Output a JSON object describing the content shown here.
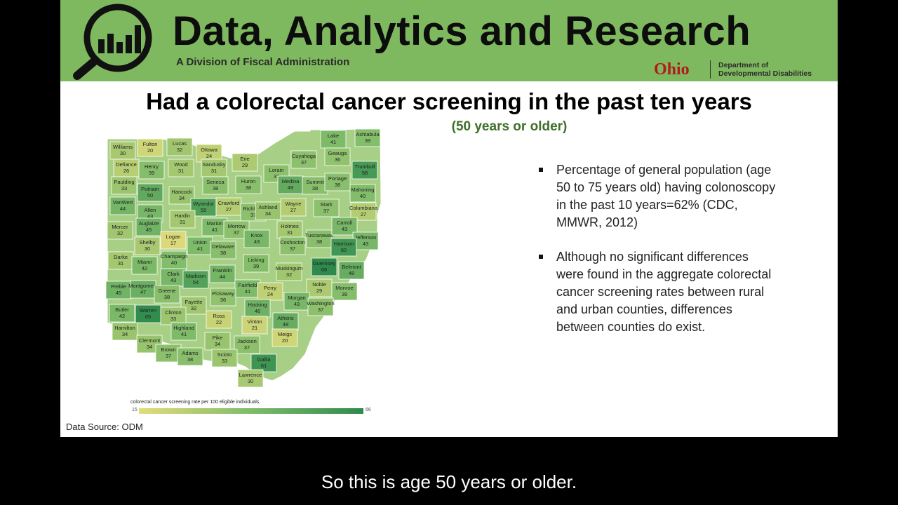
{
  "header": {
    "brand_title": "Data, Analytics and Research",
    "brand_subtitle": "A Division of Fiscal Administration",
    "ohio_logo": "Ohio",
    "dept_line1": "Department of",
    "dept_line2": "Developmental Disabilities",
    "logo_icon": "magnifier-bar-chart-icon"
  },
  "slide": {
    "title": "Had a colorectal cancer screening in the past ten years",
    "subtitle": "(50 years or older)",
    "data_source": "Data Source: ODM"
  },
  "legend": {
    "label": "colorectal cancer screening rate per 100 eligible individuals.",
    "min": "15",
    "max": "66",
    "color_low": "#e3dc7a",
    "color_mid": "#7fbc6a",
    "color_high": "#2e8a4c"
  },
  "bullets": [
    "Percentage of general population (age 50 to 75 years old) having colonoscopy in the past 10 years=62%  (CDC, MMWR, 2012)",
    "Although no significant differences were found in the aggregate colorectal cancer screening rates between rural and urban counties, differences between counties do exist."
  ],
  "caption": "So this is age 50 years or older.",
  "counties": [
    {
      "name": "Williams",
      "value": 30
    },
    {
      "name": "Fulton",
      "value": 20
    },
    {
      "name": "Lucas",
      "value": 32
    },
    {
      "name": "Ottawa",
      "value": 24
    },
    {
      "name": "Erie",
      "value": 29
    },
    {
      "name": "Lake",
      "value": 41
    },
    {
      "name": "Ashtabula",
      "value": 39
    },
    {
      "name": "Defiance",
      "value": 26
    },
    {
      "name": "Henry",
      "value": 39
    },
    {
      "name": "Wood",
      "value": 31
    },
    {
      "name": "Sandusky",
      "value": 31
    },
    {
      "name": "Cuyahoga",
      "value": 37
    },
    {
      "name": "Geauga",
      "value": 36
    },
    {
      "name": "Trumbull",
      "value": 58
    },
    {
      "name": "Paulding",
      "value": 33
    },
    {
      "name": "Putnam",
      "value": 50
    },
    {
      "name": "Hancock",
      "value": 34
    },
    {
      "name": "Seneca",
      "value": 38
    },
    {
      "name": "Huron",
      "value": 38
    },
    {
      "name": "Lorain",
      "value": 37
    },
    {
      "name": "Medina",
      "value": 49
    },
    {
      "name": "Summit",
      "value": 38
    },
    {
      "name": "Portage",
      "value": 38
    },
    {
      "name": "Mahoning",
      "value": 40
    },
    {
      "name": "VanWert",
      "value": 44
    },
    {
      "name": "Allen",
      "value": 43
    },
    {
      "name": "Wyandot",
      "value": 55
    },
    {
      "name": "Crawford",
      "value": 27
    },
    {
      "name": "Richland",
      "value": 37
    },
    {
      "name": "Ashland",
      "value": 34
    },
    {
      "name": "Wayne",
      "value": 27
    },
    {
      "name": "Stark",
      "value": 37
    },
    {
      "name": "Columbiana",
      "value": 27
    },
    {
      "name": "Mercer",
      "value": 32
    },
    {
      "name": "Auglaize",
      "value": 45
    },
    {
      "name": "Hardin",
      "value": 31
    },
    {
      "name": "Marion",
      "value": 41
    },
    {
      "name": "Morrow",
      "value": 37
    },
    {
      "name": "Knox",
      "value": 43
    },
    {
      "name": "Holmes",
      "value": 31
    },
    {
      "name": "Tuscarawas",
      "value": 38
    },
    {
      "name": "Carroll",
      "value": 43
    },
    {
      "name": "Jefferson",
      "value": 43
    },
    {
      "name": "Shelby",
      "value": 30
    },
    {
      "name": "Logan",
      "value": 17
    },
    {
      "name": "Union",
      "value": 41
    },
    {
      "name": "Delaware",
      "value": 38
    },
    {
      "name": "Licking",
      "value": 39
    },
    {
      "name": "Coshocton",
      "value": 37
    },
    {
      "name": "Harrison",
      "value": 60
    },
    {
      "name": "Darke",
      "value": 31
    },
    {
      "name": "Miami",
      "value": 42
    },
    {
      "name": "Champaign",
      "value": 40
    },
    {
      "name": "Franklin",
      "value": 44
    },
    {
      "name": "Muskingum",
      "value": 32
    },
    {
      "name": "Guernsey",
      "value": 66
    },
    {
      "name": "Belmont",
      "value": 48
    },
    {
      "name": "Clark",
      "value": 43
    },
    {
      "name": "Madison",
      "value": 54
    },
    {
      "name": "Fairfield",
      "value": 41
    },
    {
      "name": "Perry",
      "value": 24
    },
    {
      "name": "Noble",
      "value": 29
    },
    {
      "name": "Monroe",
      "value": 39
    },
    {
      "name": "Preble",
      "value": 45
    },
    {
      "name": "Montgomery",
      "value": 47
    },
    {
      "name": "Greene",
      "value": 38
    },
    {
      "name": "Pickaway",
      "value": 36
    },
    {
      "name": "Fayette",
      "value": 32
    },
    {
      "name": "Hocking",
      "value": 46
    },
    {
      "name": "Morgan",
      "value": 43
    },
    {
      "name": "Washington",
      "value": 37
    },
    {
      "name": "Butler",
      "value": 42
    },
    {
      "name": "Warren",
      "value": 65
    },
    {
      "name": "Clinton",
      "value": 33
    },
    {
      "name": "Ross",
      "value": 22
    },
    {
      "name": "Vinton",
      "value": 21
    },
    {
      "name": "Athens",
      "value": 48
    },
    {
      "name": "Hamilton",
      "value": 34
    },
    {
      "name": "Highland",
      "value": 41
    },
    {
      "name": "Clermont",
      "value": 34
    },
    {
      "name": "Pike",
      "value": 34
    },
    {
      "name": "Jackson",
      "value": 37
    },
    {
      "name": "Meigs",
      "value": 20
    },
    {
      "name": "Brown",
      "value": 37
    },
    {
      "name": "Adams",
      "value": 38
    },
    {
      "name": "Scioto",
      "value": 33
    },
    {
      "name": "Gallia",
      "value": 61
    },
    {
      "name": "Lawrence",
      "value": 30
    }
  ]
}
